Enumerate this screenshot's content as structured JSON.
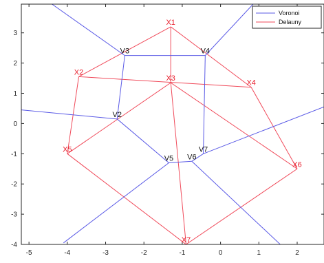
{
  "chart_data": {
    "type": "line",
    "xlim": [
      -5.2,
      2.7
    ],
    "ylim": [
      -4,
      3.95
    ],
    "xticks": [
      -5,
      -4,
      -3,
      -2,
      -1,
      0,
      1,
      2
    ],
    "yticks": [
      3,
      2,
      1,
      0,
      -1,
      -2,
      -3,
      -4
    ],
    "grid": false,
    "legend_position": "top-right",
    "legend": [
      {
        "label": "Voronoi",
        "color": "#5a5ae6"
      },
      {
        "label": "Delauny",
        "color": "#f04a5a"
      }
    ],
    "colors": {
      "voronoi": "#5a5ae6",
      "delaunay": "#f04a5a",
      "vertex_label": "#111111",
      "site_label": "#e8202e",
      "axis": "#262626"
    },
    "sites": [
      {
        "name": "X1",
        "x": -1.3,
        "y": 3.2
      },
      {
        "name": "X2",
        "x": -3.7,
        "y": 1.55
      },
      {
        "name": "X3",
        "x": -1.3,
        "y": 1.35
      },
      {
        "name": "X4",
        "x": 0.8,
        "y": 1.2
      },
      {
        "name": "X5",
        "x": -4.0,
        "y": -1.0
      },
      {
        "name": "X6",
        "x": 2.0,
        "y": -1.5
      },
      {
        "name": "X7",
        "x": -0.9,
        "y": -4.0
      }
    ],
    "vertices": [
      {
        "name": "V2",
        "x": -2.7,
        "y": 0.15
      },
      {
        "name": "V3",
        "x": -2.5,
        "y": 2.25
      },
      {
        "name": "V4",
        "x": -0.4,
        "y": 2.25
      },
      {
        "name": "V5",
        "x": -1.35,
        "y": -1.3
      },
      {
        "name": "V6",
        "x": -0.75,
        "y": -1.25
      },
      {
        "name": "V7",
        "x": -0.45,
        "y": -1.0
      }
    ],
    "delaunay_edges": [
      [
        [
          -1.3,
          3.2
        ],
        [
          -3.7,
          1.55
        ]
      ],
      [
        [
          -1.3,
          3.2
        ],
        [
          0.8,
          1.2
        ]
      ],
      [
        [
          -1.3,
          3.2
        ],
        [
          -1.3,
          1.35
        ]
      ],
      [
        [
          -3.7,
          1.55
        ],
        [
          0.8,
          1.2
        ]
      ],
      [
        [
          -3.7,
          1.55
        ],
        [
          -4.0,
          -1.0
        ]
      ],
      [
        [
          -1.3,
          1.35
        ],
        [
          -4.0,
          -1.0
        ]
      ],
      [
        [
          -1.3,
          1.35
        ],
        [
          -0.9,
          -4.0
        ]
      ],
      [
        [
          -1.3,
          1.35
        ],
        [
          2.0,
          -1.5
        ]
      ],
      [
        [
          0.8,
          1.2
        ],
        [
          2.0,
          -1.5
        ]
      ],
      [
        [
          -4.0,
          -1.0
        ],
        [
          -0.9,
          -4.0
        ]
      ],
      [
        [
          2.0,
          -1.5
        ],
        [
          -0.9,
          -4.0
        ]
      ]
    ],
    "voronoi_edges": [
      [
        [
          -2.5,
          2.25
        ],
        [
          -0.4,
          2.25
        ]
      ],
      [
        [
          -2.5,
          2.25
        ],
        [
          -2.7,
          0.15
        ]
      ],
      [
        [
          -0.4,
          2.25
        ],
        [
          -0.45,
          -1.0
        ]
      ],
      [
        [
          -2.7,
          0.15
        ],
        [
          -1.35,
          -1.3
        ]
      ],
      [
        [
          -1.35,
          -1.3
        ],
        [
          -0.75,
          -1.25
        ]
      ],
      [
        [
          -0.75,
          -1.25
        ],
        [
          -0.45,
          -1.0
        ]
      ],
      [
        [
          -2.5,
          2.25
        ],
        [
          -4.4,
          3.95
        ]
      ],
      [
        [
          -0.4,
          2.25
        ],
        [
          0.85,
          3.95
        ]
      ],
      [
        [
          -2.7,
          0.15
        ],
        [
          -5.2,
          0.45
        ]
      ],
      [
        [
          -1.35,
          -1.3
        ],
        [
          -4.1,
          -3.95
        ]
      ],
      [
        [
          -0.75,
          -1.25
        ],
        [
          1.6,
          -4.05
        ]
      ],
      [
        [
          -0.45,
          -1.0
        ],
        [
          2.7,
          0.55
        ]
      ]
    ]
  }
}
